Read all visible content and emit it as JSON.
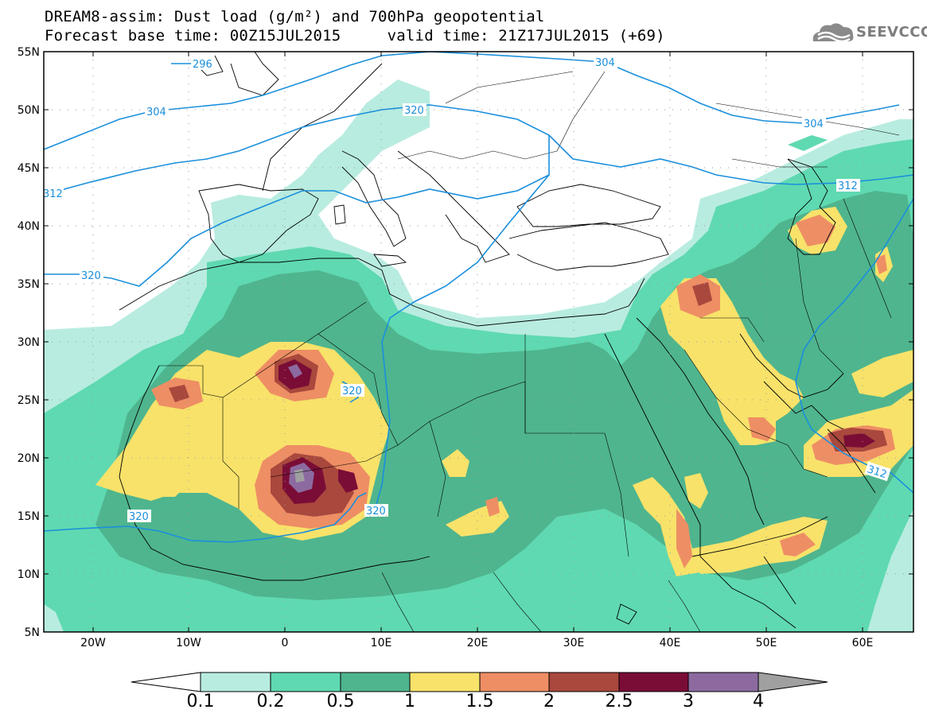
{
  "title_line1": "DREAM8-assim: Dust load (g/m²) and 700hPa geopotential",
  "title_line2": "Forecast base time: 00Z15JUL2015     valid time: 21Z17JUL2015 (+69)",
  "logo_text": "SEEVCCC",
  "lat_labels": [
    "55N",
    "50N",
    "45N",
    "40N",
    "35N",
    "30N",
    "25N",
    "20N",
    "15N",
    "10N",
    "5N"
  ],
  "lon_labels": [
    "20W",
    "10W",
    "0",
    "10E",
    "20E",
    "30E",
    "40E",
    "50E",
    "60E"
  ],
  "colorbar": {
    "labels": [
      "0.1",
      "0.2",
      "0.5",
      "1",
      "1.5",
      "2",
      "2.5",
      "3",
      "4"
    ],
    "colors": [
      "#b8ece0",
      "#5fd9b1",
      "#4fb58e",
      "#f8e26a",
      "#ee8e64",
      "#a9483d",
      "#7a0d36",
      "#8c6aa0"
    ],
    "under_color": "#ffffff",
    "over_color": "#a0a0a0"
  },
  "contour_labels": [
    "296",
    "304",
    "304",
    "304",
    "312",
    "312",
    "312",
    "320",
    "320",
    "320",
    "320",
    "320"
  ],
  "colors": {
    "land_border": "#000000",
    "contour": "#1a8fdc"
  }
}
